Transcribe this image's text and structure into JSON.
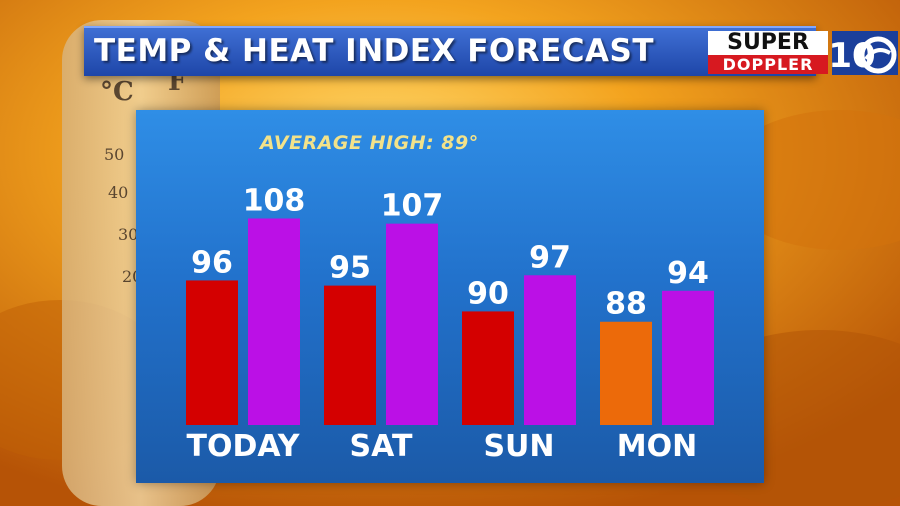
{
  "title": "TEMP & HEAT INDEX FORECAST",
  "logo": {
    "line1": "SUPER",
    "line2": "DOPPLER",
    "badge": "10",
    "badge_icon": "wave-icon"
  },
  "average_high_label": "AVERAGE HIGH: 89°",
  "colors": {
    "temp_hot": "#d40000",
    "temp_warm": "#ec6a0a",
    "heat_index": "#bb10e6",
    "panel": "#2478d2",
    "title_bar": "#2b56bd"
  },
  "chart_data": {
    "type": "bar",
    "categories": [
      "TODAY",
      "SAT",
      "SUN",
      "MON"
    ],
    "series": [
      {
        "values": [
          96,
          95,
          90,
          88
        ],
        "colors": [
          "#d40000",
          "#d40000",
          "#d40000",
          "#ec6a0a"
        ]
      },
      {
        "values": [
          108,
          107,
          97,
          94
        ],
        "color": "#bb10e6"
      }
    ],
    "ylim": [
      68,
      111
    ],
    "grid": false,
    "legend": "none"
  }
}
